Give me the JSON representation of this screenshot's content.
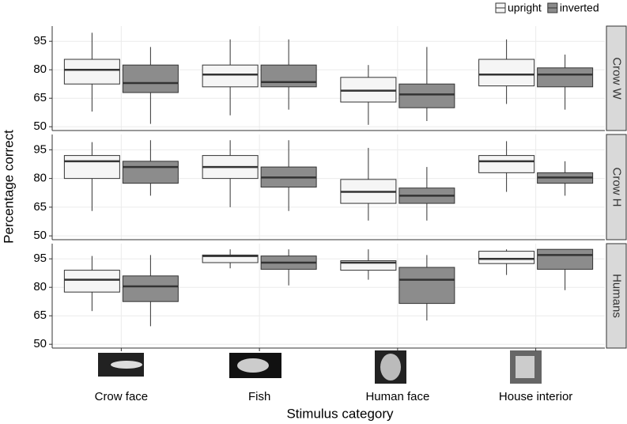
{
  "shared": {
    "xlabel": "Stimulus category",
    "ylabel": "Percentage correct"
  },
  "chart_data": [
    {
      "type": "box",
      "facet": "Crow W",
      "ylim": [
        48,
        103
      ],
      "yticks": [
        50,
        65,
        80,
        95
      ],
      "grid": true,
      "series": [
        {
          "name": "upright",
          "color": "#f5f5f5",
          "values": [
            {
              "min": 58,
              "q1": 72.5,
              "median": 80,
              "q3": 85.5,
              "max": 99.5
            },
            {
              "min": 56,
              "q1": 71,
              "median": 77.5,
              "q3": 82.5,
              "max": 96
            },
            {
              "min": 51,
              "q1": 63,
              "median": 69,
              "q3": 76,
              "max": 82.5
            },
            {
              "min": 62,
              "q1": 71.5,
              "median": 77.5,
              "q3": 85.5,
              "max": 96
            }
          ]
        },
        {
          "name": "inverted",
          "color": "#8c8c8c",
          "values": [
            {
              "min": 51.5,
              "q1": 68,
              "median": 73,
              "q3": 82.5,
              "max": 92
            },
            {
              "min": 59,
              "q1": 71,
              "median": 73.5,
              "q3": 82.5,
              "max": 96
            },
            {
              "min": 53,
              "q1": 60,
              "median": 67,
              "q3": 72.5,
              "max": 92
            },
            {
              "min": 59,
              "q1": 71,
              "median": 77.5,
              "q3": 81,
              "max": 88
            }
          ]
        }
      ]
    },
    {
      "type": "box",
      "facet": "Crow H",
      "ylim": [
        48,
        103
      ],
      "yticks": [
        50,
        65,
        80,
        95
      ],
      "grid": true,
      "series": [
        {
          "values": [
            {
              "min": 63,
              "q1": 80,
              "median": 89,
              "q3": 92,
              "max": 99
            },
            {
              "min": 65,
              "q1": 80,
              "median": 86,
              "q3": 92,
              "max": 100
            },
            {
              "min": 58,
              "q1": 67,
              "median": 73,
              "q3": 79.5,
              "max": 96
            },
            {
              "min": 73,
              "q1": 83,
              "median": 89,
              "q3": 92,
              "max": 99.5
            }
          ]
        },
        {
          "values": [
            {
              "min": 71,
              "q1": 77.5,
              "median": 86,
              "q3": 89,
              "max": 100
            },
            {
              "min": 63,
              "q1": 75.5,
              "median": 80.5,
              "q3": 86,
              "max": 100
            },
            {
              "min": 58,
              "q1": 67,
              "median": 71,
              "q3": 75,
              "max": 86
            },
            {
              "min": 71,
              "q1": 77.5,
              "median": 80.5,
              "q3": 83,
              "max": 89
            }
          ]
        }
      ]
    },
    {
      "type": "box",
      "facet": "Humans",
      "ylim": [
        48,
        103
      ],
      "yticks": [
        50,
        65,
        80,
        95
      ],
      "grid": true,
      "categories": [
        "Crow face",
        "Fish",
        "Human face",
        "House interior"
      ],
      "series": [
        {
          "values": [
            {
              "min": 67.5,
              "q1": 77.5,
              "median": 84,
              "q3": 89,
              "max": 96.5
            },
            {
              "min": 90,
              "q1": 93,
              "median": 96.5,
              "q3": 97,
              "max": 100
            },
            {
              "min": 84,
              "q1": 89,
              "median": 93,
              "q3": 94,
              "max": 100
            },
            {
              "min": 86.5,
              "q1": 92.5,
              "median": 95,
              "q3": 99,
              "max": 100
            }
          ]
        },
        {
          "values": [
            {
              "min": 59.5,
              "q1": 72.5,
              "median": 80.5,
              "q3": 86,
              "max": 97
            },
            {
              "min": 81,
              "q1": 89.5,
              "median": 93,
              "q3": 96.5,
              "max": 100
            },
            {
              "min": 62.5,
              "q1": 71.5,
              "median": 84,
              "q3": 90.5,
              "max": 97
            },
            {
              "min": 78.5,
              "q1": 89.5,
              "median": 97,
              "q3": 100,
              "max": 100
            }
          ]
        }
      ]
    }
  ]
}
